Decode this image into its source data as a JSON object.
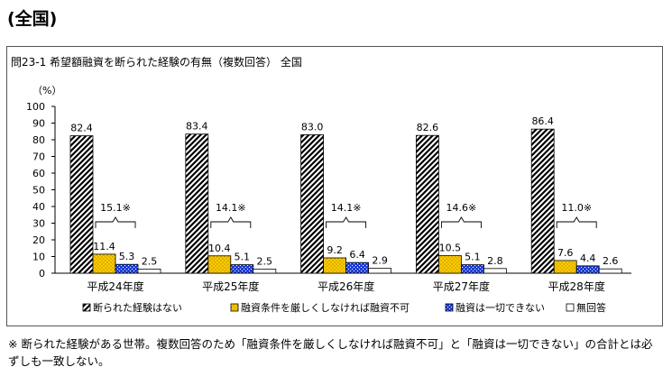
{
  "heading": "(全国)",
  "chart_data": {
    "type": "bar",
    "title": "問23-1 希望額融資を断られた経験の有無（複数回答） 全国",
    "ylabel": "（%）",
    "ylim": [
      0,
      100
    ],
    "yticks": [
      0,
      10,
      20,
      30,
      40,
      50,
      60,
      70,
      80,
      90,
      100
    ],
    "grid": false,
    "legend_position": "bottom",
    "categories": [
      "平成24年度",
      "平成25年度",
      "平成26年度",
      "平成27年度",
      "平成28年度"
    ],
    "series": [
      {
        "name": "断られた経験はない",
        "values": [
          82.4,
          83.4,
          83.0,
          82.6,
          86.4
        ],
        "labels": [
          "82.4",
          "83.4",
          "83.0",
          "82.6",
          "86.4"
        ],
        "color": "#ffffff",
        "pattern": "diagonal-hatch"
      },
      {
        "name": "融資条件を厳しくしなければ融資不可",
        "values": [
          11.4,
          10.4,
          9.2,
          10.5,
          7.6
        ],
        "labels": [
          "11.4",
          "10.4",
          "9.2",
          "10.5",
          "7.6"
        ],
        "color": "#ffcc00",
        "pattern": "dots"
      },
      {
        "name": "融資は一切できない",
        "values": [
          5.3,
          5.1,
          6.4,
          5.1,
          4.4
        ],
        "labels": [
          "5.3",
          "5.1",
          "6.4",
          "5.1",
          "4.4"
        ],
        "color": "#1f3fd6",
        "pattern": "checker"
      },
      {
        "name": "無回答",
        "values": [
          2.5,
          2.5,
          2.9,
          2.8,
          2.6
        ],
        "labels": [
          "2.5",
          "2.5",
          "2.9",
          "2.8",
          "2.6"
        ],
        "color": "#ffffff",
        "pattern": "none"
      }
    ],
    "annotations": [
      {
        "category": "平成24年度",
        "value": 15.1,
        "text": "15.1※"
      },
      {
        "category": "平成25年度",
        "value": 14.1,
        "text": "14.1※"
      },
      {
        "category": "平成26年度",
        "value": 14.1,
        "text": "14.1※"
      },
      {
        "category": "平成27年度",
        "value": 14.6,
        "text": "14.6※"
      },
      {
        "category": "平成28年度",
        "value": 11.0,
        "text": "11.0※"
      }
    ]
  },
  "note": "※ 断られた経験がある世帯。複数回答のため「融資条件を厳しくしなければ融資不可」と「融資は一切できない」の合計とは必ずしも一致しない。"
}
